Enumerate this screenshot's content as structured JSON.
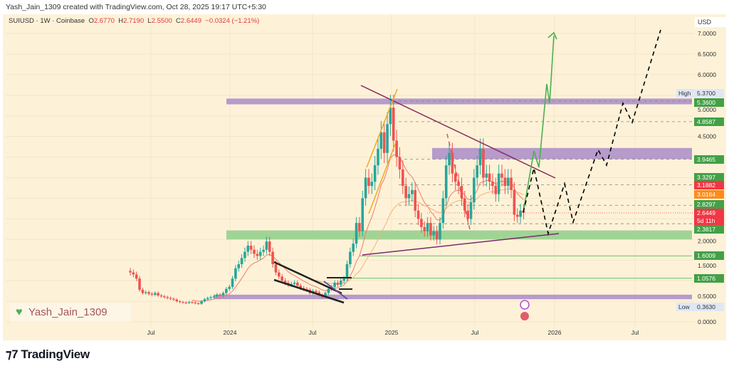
{
  "header": {
    "credit": "Yash_Jain_1309 created with TradingView.com, Oct 28, 2025 19:17 UTC+5:30"
  },
  "legend": {
    "symbol": "SUIUSD · 1W · Coinbase",
    "open_label": "O",
    "open": "2.6770",
    "high_label": "H",
    "high": "2.7190",
    "low_label": "L",
    "low": "2.5500",
    "close_label": "C",
    "close": "2.6449",
    "change": "−0.0324 (−1.21%)"
  },
  "watermark": {
    "text": "Yash_Jain_1309",
    "icon": "green-heart-icon"
  },
  "brand": {
    "name": "TradingView",
    "icon": "tradingview-logo-icon"
  },
  "colors": {
    "background": "#fdf2d8",
    "up": "#26a69a",
    "down": "#ef5350",
    "purple_zone": "#a98cc9",
    "green_zone": "#8fcf8a",
    "projection_up": "#4caf50",
    "projection_dashed": "#000000"
  },
  "chart_data": {
    "type": "candlestick",
    "symbol": "SUIUSD",
    "interval": "1W",
    "currency_label": "USD",
    "ylim": [
      0,
      7.3
    ],
    "y_ticks": [
      "7.0000",
      "6.5000",
      "6.0000",
      "5.0000",
      "4.5000",
      "2.0000",
      "1.5000",
      "0.5000",
      "0.0000"
    ],
    "x_ticks": [
      "Jul",
      "2024",
      "Jul",
      "2025",
      "Jul",
      "2026",
      "Jul"
    ],
    "closes": [
      1.2,
      1.15,
      1.05,
      0.78,
      0.7,
      0.72,
      0.68,
      0.66,
      0.7,
      0.64,
      0.62,
      0.6,
      0.58,
      0.56,
      0.54,
      0.5,
      0.48,
      0.47,
      0.46,
      0.48,
      0.47,
      0.45,
      0.44,
      0.5,
      0.55,
      0.58,
      0.6,
      0.62,
      0.66,
      0.64,
      0.7,
      0.8,
      0.85,
      1.05,
      1.3,
      1.4,
      1.55,
      1.7,
      1.85,
      1.75,
      1.65,
      1.6,
      1.7,
      1.75,
      1.95,
      1.7,
      1.4,
      1.2,
      1.1,
      1.0,
      0.95,
      0.9,
      0.92,
      0.95,
      0.88,
      0.82,
      0.8,
      0.78,
      0.7,
      0.75,
      0.72,
      0.65,
      0.6,
      0.7,
      0.8,
      0.85,
      0.95,
      0.9,
      1.0,
      1.05,
      1.4,
      1.7,
      1.9,
      2.4,
      2.2,
      3.0,
      3.5,
      3.3,
      3.4,
      3.8,
      4.2,
      4.6,
      4.1,
      4.8,
      5.2,
      4.4,
      4.0,
      3.7,
      3.3,
      3.0,
      3.1,
      3.2,
      2.7,
      2.5,
      2.3,
      2.2,
      2.4,
      2.1,
      2.2,
      2.0,
      2.4,
      3.0,
      3.8,
      4.1,
      3.6,
      3.4,
      3.3,
      3.0,
      2.7,
      2.5,
      2.9,
      3.5,
      3.8,
      4.2,
      3.5,
      3.6,
      3.4,
      3.3,
      3.1,
      3.6,
      3.5,
      3.3,
      3.5,
      3.2,
      2.6,
      2.55,
      2.7,
      2.6449
    ],
    "zones": [
      {
        "kind": "resistance",
        "from": 5.28,
        "to": 5.42,
        "color": "#a98cc9"
      },
      {
        "kind": "resistance",
        "from": 3.95,
        "to": 4.22,
        "color": "#a98cc9"
      },
      {
        "kind": "support",
        "from": 2.0,
        "to": 2.22,
        "color": "#8fcf8a"
      },
      {
        "kind": "support",
        "from": 0.55,
        "to": 0.66,
        "color": "#a98cc9"
      }
    ],
    "levels": [
      {
        "value": "5.3700",
        "label": "High",
        "style": "extreme"
      },
      {
        "value": "5.3600",
        "color": "#43a047"
      },
      {
        "value": "4.8587",
        "color": "#43a047"
      },
      {
        "value": "3.9465",
        "color": "#43a047"
      },
      {
        "value": "3.3297",
        "color": "#43a047"
      },
      {
        "value": "3.1882",
        "color": "#f23645"
      },
      {
        "value": "3.0164",
        "color": "#ff8c1a"
      },
      {
        "value": "2.8297",
        "color": "#43a047"
      },
      {
        "value": "2.6449",
        "countdown": "5d 11h",
        "color": "#f23645"
      },
      {
        "value": "2.3817",
        "color": "#43a047"
      },
      {
        "value": "1.6009",
        "color": "#43a047"
      },
      {
        "value": "1.0576",
        "color": "#43a047"
      },
      {
        "value": "0.3630",
        "label": "Low",
        "style": "extreme"
      }
    ]
  }
}
